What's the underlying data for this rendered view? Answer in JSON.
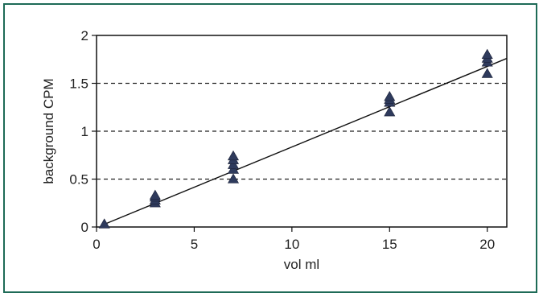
{
  "chart_data": {
    "type": "scatter",
    "title": "",
    "xlabel": "vol ml",
    "ylabel": "background CPM",
    "xlim": [
      0,
      21
    ],
    "ylim": [
      0,
      2
    ],
    "x_ticks": [
      0,
      5,
      10,
      15,
      20
    ],
    "x_tick_labels": [
      "0",
      "5",
      "10",
      "15",
      "20"
    ],
    "y_ticks": [
      0,
      0.5,
      1,
      1.5,
      2
    ],
    "y_tick_labels": [
      "0",
      "0.5",
      "1",
      "1.5",
      "2"
    ],
    "grid": "horizontal dashed",
    "legend": "none",
    "series": [
      {
        "marker": "triangle",
        "color": "#2e3a5c",
        "points": [
          {
            "x": 0.4,
            "y": 0.03
          },
          {
            "x": 3,
            "y": 0.25
          },
          {
            "x": 3,
            "y": 0.28
          },
          {
            "x": 3,
            "y": 0.31
          },
          {
            "x": 3,
            "y": 0.33
          },
          {
            "x": 7,
            "y": 0.5
          },
          {
            "x": 7,
            "y": 0.6
          },
          {
            "x": 7,
            "y": 0.65
          },
          {
            "x": 7,
            "y": 0.7
          },
          {
            "x": 7,
            "y": 0.74
          },
          {
            "x": 15,
            "y": 1.2
          },
          {
            "x": 15,
            "y": 1.3
          },
          {
            "x": 15,
            "y": 1.33
          },
          {
            "x": 15,
            "y": 1.36
          },
          {
            "x": 20,
            "y": 1.6
          },
          {
            "x": 20,
            "y": 1.72
          },
          {
            "x": 20,
            "y": 1.76
          },
          {
            "x": 20,
            "y": 1.8
          }
        ]
      }
    ],
    "trendline": {
      "type": "linear",
      "from": [
        0.3,
        0.02
      ],
      "to": [
        21,
        1.76
      ],
      "color": "#111111"
    }
  }
}
